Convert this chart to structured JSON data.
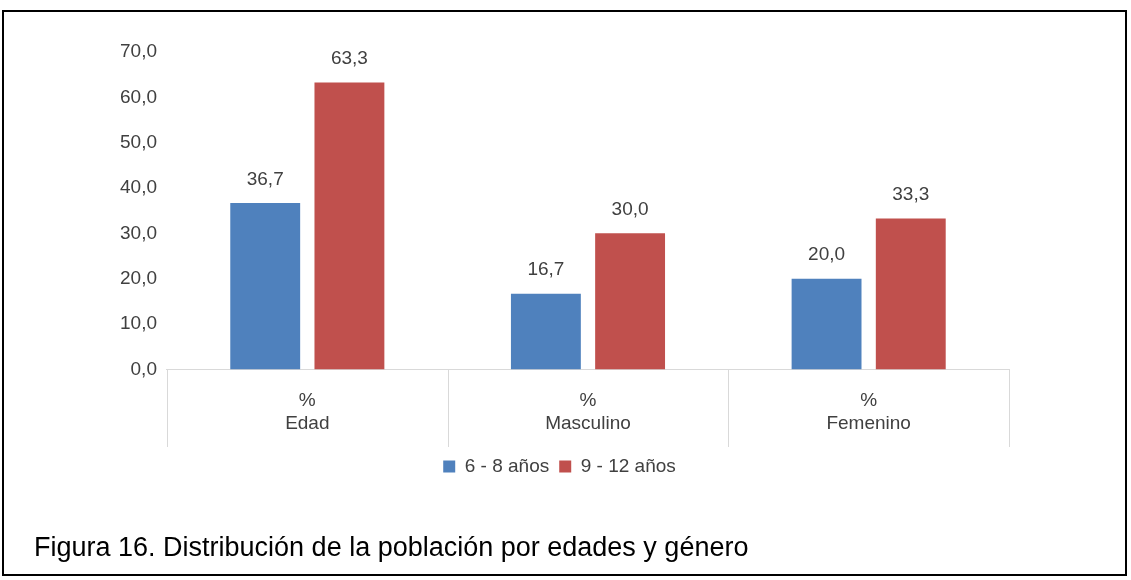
{
  "chart_data": {
    "type": "bar",
    "title": "Figura 16. Distribución de la población por edades y género",
    "categories": [
      "%\nEdad",
      "%\nMasculino",
      "%\nFemenino"
    ],
    "series": [
      {
        "name": "6 - 8 años",
        "color": "#4f81bd",
        "values": [
          36.7,
          16.7,
          20.0
        ]
      },
      {
        "name": "9 - 12 años",
        "color": "#c0504d",
        "values": [
          63.3,
          30.0,
          33.3
        ]
      }
    ],
    "ylim": [
      0,
      70
    ],
    "yticks": [
      {
        "value": 0,
        "label": "0,0"
      },
      {
        "value": 10,
        "label": "10,0"
      },
      {
        "value": 20,
        "label": "20,0"
      },
      {
        "value": 30,
        "label": "30,0"
      },
      {
        "value": 40,
        "label": "40,0"
      },
      {
        "value": 50,
        "label": "50,0"
      },
      {
        "value": 60,
        "label": "60,0"
      },
      {
        "value": 70,
        "label": "70,0"
      }
    ],
    "value_labels": [
      [
        "36,7",
        "16,7",
        "20,0"
      ],
      [
        "63,3",
        "30,0",
        "33,3"
      ]
    ],
    "grid": false,
    "legend": "bottom"
  }
}
